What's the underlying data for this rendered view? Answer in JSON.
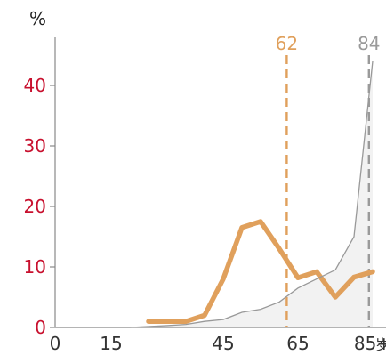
{
  "chart_data": {
    "type": "line",
    "title": "",
    "ylabel": "%",
    "xunit": "岁",
    "xlim": [
      0,
      90
    ],
    "ylim": [
      0,
      45
    ],
    "xticks": [
      {
        "value": 0,
        "label": "0"
      },
      {
        "value": 15,
        "label": "15"
      },
      {
        "value": 45,
        "label": "45"
      },
      {
        "value": 65,
        "label": "65"
      },
      {
        "value": 85,
        "label": "85+"
      }
    ],
    "yticks": [
      {
        "value": 0,
        "label": "0"
      },
      {
        "value": 10,
        "label": "10"
      },
      {
        "value": 20,
        "label": "20"
      },
      {
        "value": 30,
        "label": "30"
      },
      {
        "value": 40,
        "label": "40"
      }
    ],
    "series": [
      {
        "name": "",
        "color": "#e0a05c",
        "style": "thick",
        "x": [
          25,
          30,
          35,
          40,
          45,
          50,
          55,
          60,
          65,
          70,
          75,
          80,
          85
        ],
        "y": [
          1,
          1,
          1,
          2,
          8,
          16.5,
          17.5,
          13,
          8.2,
          9.2,
          5,
          8.3,
          9.2
        ]
      },
      {
        "name": "",
        "color": "#999999",
        "style": "thin-area",
        "x": [
          0,
          10,
          20,
          30,
          35,
          40,
          45,
          50,
          55,
          60,
          65,
          70,
          75,
          80,
          85
        ],
        "y": [
          0,
          0,
          0,
          0.3,
          0.5,
          1,
          1.3,
          2.5,
          3,
          4.2,
          6.5,
          8,
          9.5,
          15,
          44
        ]
      }
    ],
    "vlines": [
      {
        "x": 62,
        "label": "62",
        "color": "#e0a05c"
      },
      {
        "x": 84,
        "label": "84",
        "color": "#9a9a9a"
      }
    ],
    "grid": false,
    "legend": "none"
  }
}
